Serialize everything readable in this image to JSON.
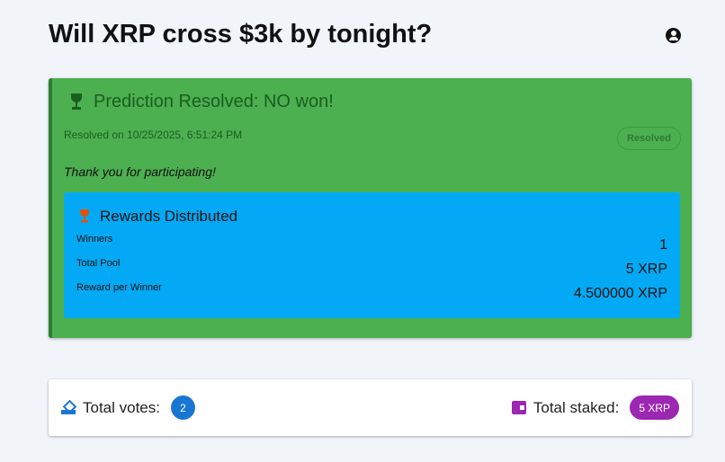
{
  "header": {
    "title": "Will XRP cross $3k by tonight?",
    "account_icon": "account-circle-icon"
  },
  "result": {
    "heading": "Prediction Resolved: NO won!",
    "resolved_on": "Resolved on 10/25/2025, 6:51:24 PM",
    "status": "Resolved",
    "thanks": "Thank you for participating!",
    "color": "#4caf50"
  },
  "rewards": {
    "heading": "Rewards Distributed",
    "rows": [
      {
        "label": "Winners",
        "value": "1"
      },
      {
        "label": "Total Pool",
        "value": "5 XRP"
      },
      {
        "label": "Reward per Winner",
        "value": "4.500000 XRP"
      }
    ],
    "color": "#03a9f4"
  },
  "stats": {
    "votes_label": "Total votes:",
    "votes": "2",
    "staked_label": "Total staked:",
    "staked": "5 XRP",
    "votes_color": "#1976d2",
    "staked_color": "#9c27b0"
  }
}
